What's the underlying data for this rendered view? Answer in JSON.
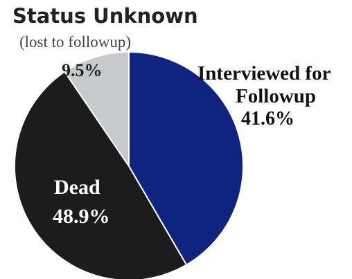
{
  "chart_data": {
    "type": "pie",
    "start_angle_deg": 0,
    "direction": "clockwise",
    "slices": [
      {
        "label": "Interviewed for Followup",
        "value": 41.6,
        "display": "41.6%",
        "color": "#0f2480"
      },
      {
        "label": "Dead",
        "value": 48.9,
        "display": "48.9%",
        "color": "#1c1c1c"
      },
      {
        "label": "Status Unknown",
        "sublabel": "(lost to followup)",
        "value": 9.5,
        "display": "9.5%",
        "color": "#c7c9cc"
      }
    ]
  }
}
